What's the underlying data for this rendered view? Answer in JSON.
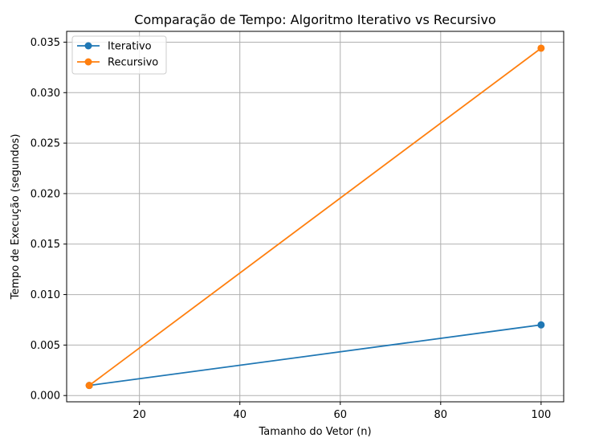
{
  "chart_data": {
    "type": "line",
    "title": "Comparação de Tempo: Algoritmo Iterativo vs Recursivo",
    "xlabel": "Tamanho do Vetor (n)",
    "ylabel": "Tempo de Execução (segundos)",
    "x": [
      10,
      100
    ],
    "series": [
      {
        "name": "Iterativo",
        "values": [
          0.001,
          0.007
        ],
        "color": "#1f77b4",
        "marker": "circle"
      },
      {
        "name": "Recursivo",
        "values": [
          0.001,
          0.0344
        ],
        "color": "#ff7f0e",
        "marker": "circle"
      }
    ],
    "xlim": [
      5.5,
      104.5
    ],
    "ylim": [
      -0.00062,
      0.03607
    ],
    "xticks": [
      20,
      40,
      60,
      80,
      100
    ],
    "xtick_labels": [
      "20",
      "40",
      "60",
      "80",
      "100"
    ],
    "yticks": [
      0.0,
      0.005,
      0.01,
      0.015,
      0.02,
      0.025,
      0.03,
      0.035
    ],
    "ytick_labels": [
      "0.000",
      "0.005",
      "0.010",
      "0.015",
      "0.020",
      "0.025",
      "0.030",
      "0.035"
    ],
    "grid": true,
    "legend_position": "top-left"
  }
}
